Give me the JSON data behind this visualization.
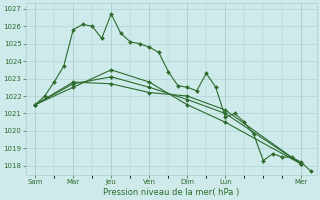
{
  "background_color": "#ceeaea",
  "grid_color": "#aacfcf",
  "line_color": "#2d6b2d",
  "title": "Pression niveau de la mer( hPa )",
  "ylim": [
    1017.5,
    1027.3
  ],
  "yticks": [
    1018,
    1019,
    1020,
    1021,
    1022,
    1023,
    1024,
    1025,
    1026,
    1027
  ],
  "xtick_labels": [
    "Sam",
    "Mar",
    "Jeu",
    "Ven",
    "Dim",
    "Lun",
    "Mer"
  ],
  "xtick_pos": [
    0,
    2,
    4,
    6,
    8,
    10,
    14
  ],
  "xmax": 14.8,
  "series1_x": [
    0,
    0.5,
    1,
    1.5,
    2,
    2.5,
    3,
    3.5,
    4,
    4.5,
    5,
    5.5,
    6,
    6.5,
    7,
    7.5,
    8,
    8.5,
    9,
    9.5,
    10,
    10.5,
    11,
    11.5,
    12,
    12.5,
    13,
    13.5,
    14,
    14.5
  ],
  "series1_y": [
    1021.5,
    1022.0,
    1022.8,
    1023.7,
    1025.8,
    1026.1,
    1026.0,
    1025.3,
    1026.7,
    1025.6,
    1025.1,
    1025.0,
    1024.8,
    1024.5,
    1023.4,
    1022.6,
    1022.5,
    1022.3,
    1023.3,
    1022.5,
    1020.8,
    1021.0,
    1020.5,
    1019.8,
    1018.3,
    1018.7,
    1018.5,
    1018.5,
    1018.2,
    1017.7
  ],
  "series2_x": [
    0,
    2,
    4,
    6,
    8,
    10,
    14
  ],
  "series2_y": [
    1021.5,
    1022.8,
    1022.7,
    1022.2,
    1022.0,
    1021.2,
    1018.1
  ],
  "series3_x": [
    0,
    2,
    4,
    6,
    8,
    10,
    14
  ],
  "series3_y": [
    1021.5,
    1022.7,
    1023.1,
    1022.5,
    1021.8,
    1021.0,
    1018.1
  ],
  "series4_x": [
    0,
    2,
    4,
    6,
    8,
    10,
    14
  ],
  "series4_y": [
    1021.5,
    1022.5,
    1023.5,
    1022.8,
    1021.5,
    1020.5,
    1018.1
  ]
}
